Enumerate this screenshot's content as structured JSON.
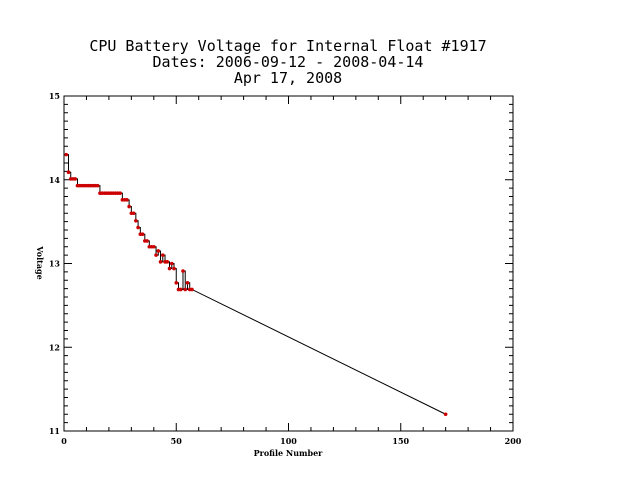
{
  "chart_data": {
    "type": "line",
    "title_lines": [
      "CPU Battery Voltage for Internal Float #1917",
      "Dates:  2006-09-12 -  2008-04-14",
      "Apr 17, 2008"
    ],
    "xlabel": "Profile Number",
    "ylabel": "Voltage",
    "xlim": [
      0,
      200
    ],
    "ylim": [
      11,
      15
    ],
    "x_ticks": [
      "0",
      "50",
      "100",
      "150",
      "200"
    ],
    "y_ticks": [
      "11",
      "12",
      "13",
      "14",
      "15"
    ],
    "grid": false,
    "line_color": "#000000",
    "marker_color": "#cc0000",
    "series": [
      {
        "x": [
          1,
          2,
          3,
          4,
          5,
          6,
          7,
          8,
          9,
          10,
          11,
          12,
          13,
          14,
          15,
          16,
          17,
          18,
          19,
          20,
          21,
          22,
          23,
          24,
          25,
          26,
          27,
          28,
          29,
          30,
          31,
          32,
          33,
          34,
          35,
          36,
          37,
          38,
          39,
          40,
          41,
          42,
          43,
          44,
          45,
          46,
          47,
          48,
          49,
          50,
          51,
          52,
          53,
          54,
          55,
          56,
          57,
          170
        ],
        "y": [
          14.3,
          14.09,
          14.01,
          14.01,
          14.01,
          13.93,
          13.93,
          13.93,
          13.93,
          13.93,
          13.93,
          13.93,
          13.93,
          13.93,
          13.93,
          13.84,
          13.84,
          13.84,
          13.84,
          13.84,
          13.84,
          13.84,
          13.84,
          13.84,
          13.84,
          13.76,
          13.76,
          13.76,
          13.68,
          13.6,
          13.6,
          13.51,
          13.43,
          13.35,
          13.35,
          13.27,
          13.27,
          13.2,
          13.2,
          13.2,
          13.1,
          13.15,
          13.02,
          13.1,
          13.02,
          13.02,
          12.94,
          13.0,
          12.94,
          12.77,
          12.69,
          12.69,
          12.91,
          12.69,
          12.77,
          12.69,
          12.69,
          11.2
        ]
      }
    ]
  }
}
